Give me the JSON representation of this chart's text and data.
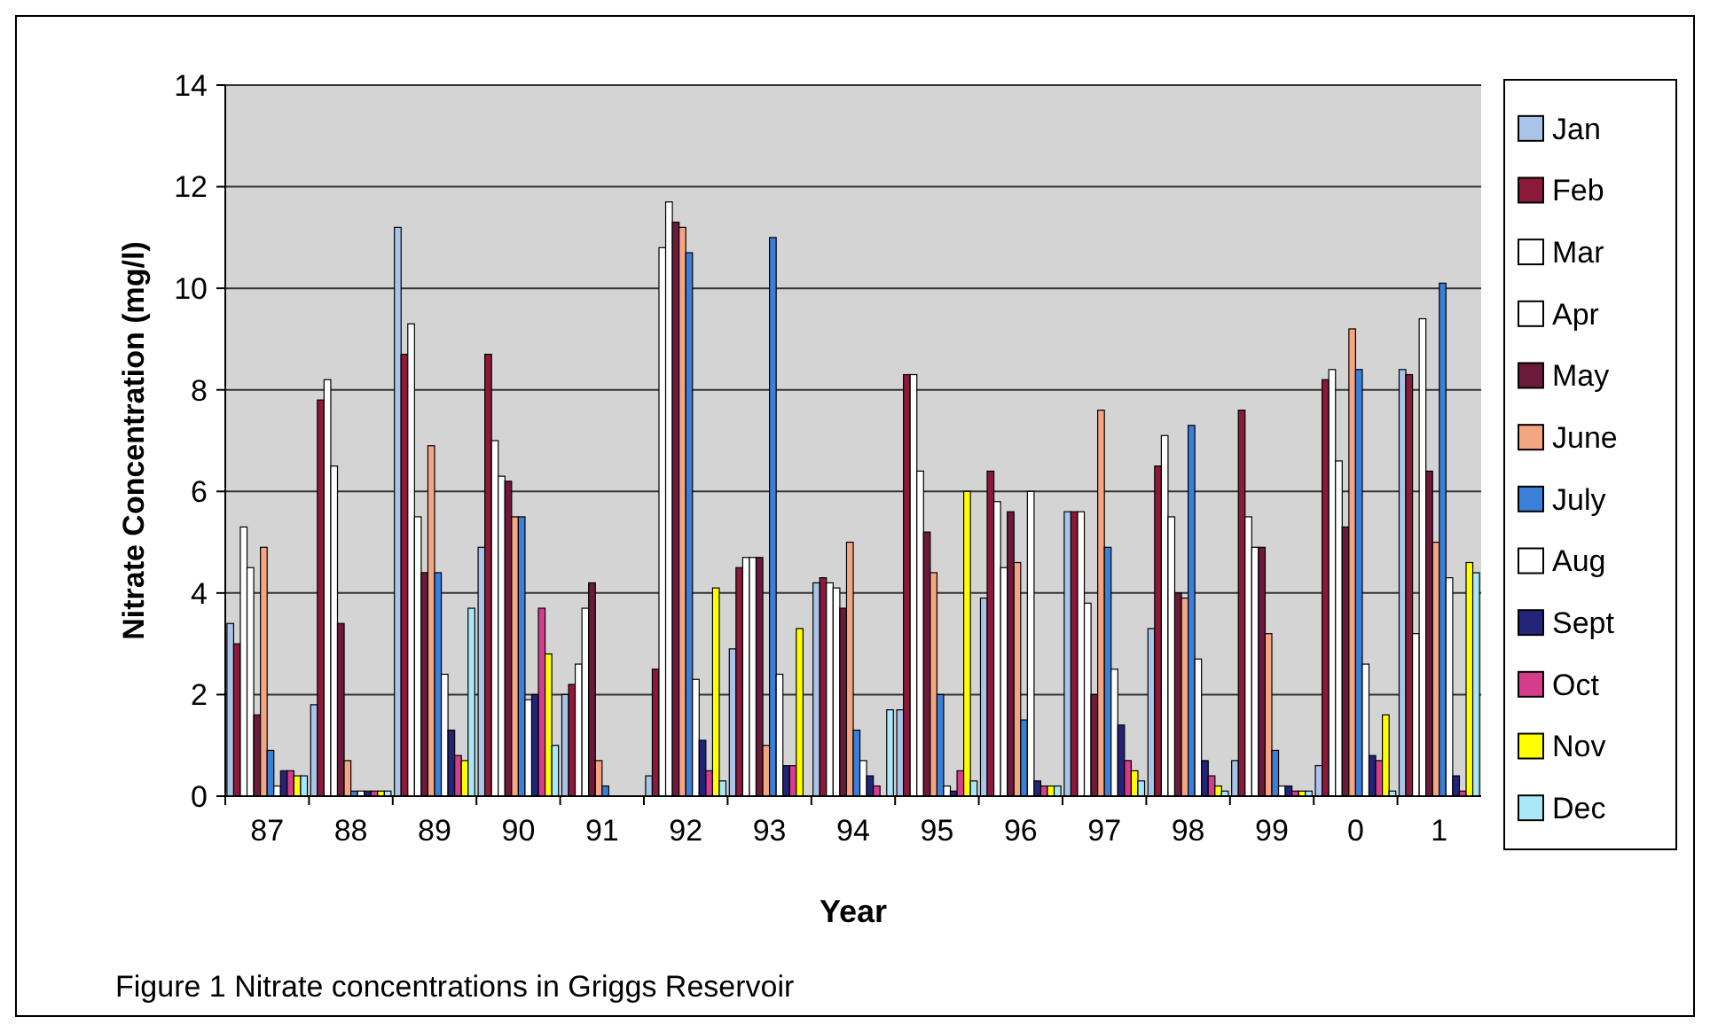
{
  "chart_data": {
    "type": "bar",
    "title": "Figure 1  Nitrate concentrations in Griggs Reservoir",
    "xlabel": "Year",
    "ylabel": "Nitrate Concentration (mg/l)",
    "categories": [
      "87",
      "88",
      "89",
      "90",
      "91",
      "92",
      "93",
      "94",
      "95",
      "96",
      "97",
      "98",
      "99",
      "0",
      "1"
    ],
    "series": [
      {
        "name": "Jan",
        "color": "#a9c4e8",
        "values": [
          3.4,
          1.8,
          11.2,
          4.9,
          2.0,
          0.4,
          2.9,
          4.2,
          1.7,
          3.9,
          5.6,
          3.3,
          0.7,
          0.6,
          8.4
        ]
      },
      {
        "name": "Feb",
        "color": "#8b1a3a",
        "values": [
          3.0,
          7.8,
          8.7,
          8.7,
          2.2,
          2.5,
          4.5,
          4.3,
          8.3,
          6.4,
          5.6,
          6.5,
          7.6,
          8.2,
          8.3
        ]
      },
      {
        "name": "Mar",
        "color": "#ffffff",
        "values": [
          5.3,
          8.2,
          9.3,
          7.0,
          2.6,
          10.8,
          4.7,
          4.2,
          8.3,
          5.8,
          5.6,
          7.1,
          5.5,
          8.4,
          3.2
        ]
      },
      {
        "name": "Apr",
        "color": "#ffffff",
        "values": [
          4.5,
          6.5,
          5.5,
          6.3,
          3.7,
          11.7,
          4.7,
          4.1,
          6.4,
          4.5,
          3.8,
          5.5,
          4.9,
          6.6,
          9.4
        ]
      },
      {
        "name": "May",
        "color": "#6b1a3a",
        "values": [
          1.6,
          3.4,
          4.4,
          6.2,
          4.2,
          11.3,
          4.7,
          3.7,
          5.2,
          5.6,
          2.0,
          4.0,
          4.9,
          5.3,
          6.4
        ]
      },
      {
        "name": "June",
        "color": "#f4a582",
        "values": [
          4.9,
          0.7,
          6.9,
          5.5,
          0.7,
          11.2,
          1.0,
          5.0,
          4.4,
          4.6,
          7.6,
          3.9,
          3.2,
          9.2,
          5.0
        ]
      },
      {
        "name": "July",
        "color": "#3a7fd8",
        "values": [
          0.9,
          0.1,
          4.4,
          5.5,
          0.2,
          10.7,
          11.0,
          1.3,
          2.0,
          1.5,
          4.9,
          7.3,
          0.9,
          8.4,
          10.1
        ]
      },
      {
        "name": "Aug",
        "color": "#ffffff",
        "values": [
          0.2,
          0.1,
          2.4,
          1.9,
          null,
          2.3,
          2.4,
          0.7,
          0.2,
          6.0,
          2.5,
          2.7,
          0.2,
          2.6,
          4.3
        ]
      },
      {
        "name": "Sept",
        "color": "#23237a",
        "values": [
          0.5,
          0.1,
          1.3,
          2.0,
          null,
          1.1,
          0.6,
          0.4,
          0.1,
          0.3,
          1.4,
          0.7,
          0.2,
          0.8,
          0.4
        ]
      },
      {
        "name": "Oct",
        "color": "#d63c8c",
        "values": [
          0.5,
          0.1,
          0.8,
          3.7,
          null,
          0.5,
          0.6,
          0.2,
          0.5,
          0.2,
          0.7,
          0.4,
          0.1,
          0.7,
          0.1
        ]
      },
      {
        "name": "Nov",
        "color": "#ffff00",
        "values": [
          0.4,
          0.1,
          0.7,
          2.8,
          null,
          4.1,
          3.3,
          null,
          6.0,
          0.2,
          0.5,
          0.2,
          0.1,
          1.6,
          4.6
        ]
      },
      {
        "name": "Dec",
        "color": "#a8e8f8",
        "values": [
          0.4,
          0.1,
          3.7,
          1.0,
          null,
          0.3,
          null,
          1.7,
          0.3,
          0.2,
          0.3,
          0.1,
          0.1,
          0.1,
          4.4
        ]
      }
    ],
    "ylim": [
      0,
      14
    ],
    "yticks": [
      0,
      2,
      4,
      6,
      8,
      10,
      12,
      14
    ],
    "grid": "y",
    "legend": "right"
  }
}
